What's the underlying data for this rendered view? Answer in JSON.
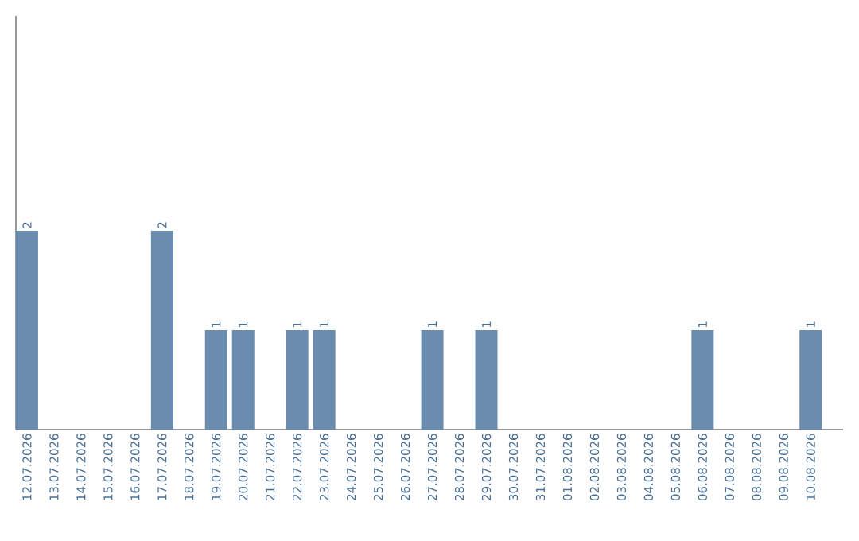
{
  "chart_data": {
    "type": "bar",
    "categories": [
      "12.07.2026",
      "13.07.2026",
      "14.07.2026",
      "15.07.2026",
      "16.07.2026",
      "17.07.2026",
      "18.07.2026",
      "19.07.2026",
      "20.07.2026",
      "21.07.2026",
      "22.07.2026",
      "23.07.2026",
      "24.07.2026",
      "25.07.2026",
      "26.07.2026",
      "27.07.2026",
      "28.07.2026",
      "29.07.2026",
      "30.07.2026",
      "31.07.2026",
      "01.08.2026",
      "02.08.2026",
      "03.08.2026",
      "04.08.2026",
      "05.08.2026",
      "06.08.2026",
      "07.08.2026",
      "08.08.2026",
      "09.08.2026",
      "10.08.2026"
    ],
    "values": [
      2,
      0,
      0,
      0,
      0,
      2,
      0,
      1,
      1,
      0,
      1,
      1,
      0,
      0,
      0,
      1,
      0,
      1,
      0,
      0,
      0,
      0,
      0,
      0,
      0,
      1,
      0,
      0,
      0,
      1
    ],
    "value_labels": [
      "2",
      null,
      null,
      null,
      null,
      "2",
      null,
      "1",
      "1",
      null,
      "1",
      "1",
      null,
      null,
      null,
      "1",
      null,
      "1",
      null,
      null,
      null,
      null,
      null,
      null,
      null,
      "1",
      null,
      null,
      null,
      "1"
    ],
    "color": "#6a8caf"
  }
}
